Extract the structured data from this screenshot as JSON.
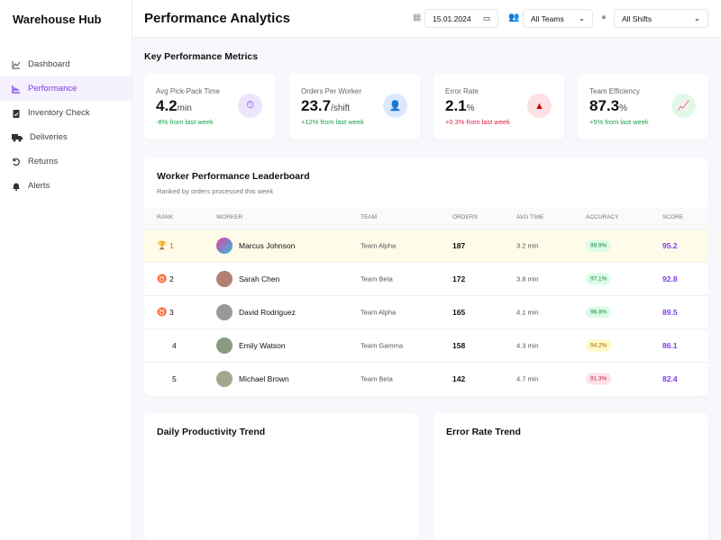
{
  "sidebar": {
    "brand": "Warehouse Hub",
    "items": [
      {
        "label": "Dashboard",
        "icon": "chart-line-icon"
      },
      {
        "label": "Performance",
        "icon": "chart-bar-icon",
        "active": true
      },
      {
        "label": "Inventory Check",
        "icon": "clipboard-check-icon"
      },
      {
        "label": "Deliveries",
        "icon": "truck-icon"
      },
      {
        "label": "Returns",
        "icon": "undo-icon"
      },
      {
        "label": "Alerts",
        "icon": "bell-icon"
      }
    ]
  },
  "header": {
    "title": "Performance Analytics",
    "date": "15.01.2024",
    "team": "All Teams",
    "shift": "All Shifts"
  },
  "kpi": {
    "title": "Key Performance Metrics",
    "cards": [
      {
        "label": "Avg Pick-Pack Time",
        "value": "4.2",
        "unit": "min",
        "change": "-8% from last week"
      },
      {
        "label": "Orders Per Worker",
        "value": "23.7",
        "unit": "/shift",
        "change": "+12% from last week"
      },
      {
        "label": "Error Rate",
        "value": "2.1",
        "unit": "%",
        "change": "+0.3% from last week"
      },
      {
        "label": "Team Efficiency",
        "value": "87.3",
        "unit": "%",
        "change": "+5% from last week"
      }
    ]
  },
  "leaderboard": {
    "title": "Worker Performance Leaderboard",
    "subtitle": "Ranked by orders processed this week",
    "columns": [
      "RANK",
      "WORKER",
      "TEAM",
      "ORDERS",
      "AVG TIME",
      "ACCURACY",
      "SCORE"
    ],
    "rows": [
      {
        "rank": "1",
        "name": "Marcus Johnson",
        "team": "Team Alpha",
        "orders": "187",
        "avg": "3.2 min",
        "acc": "98.9%",
        "score": "95.2"
      },
      {
        "rank": "2",
        "name": "Sarah Chen",
        "team": "Team Beta",
        "orders": "172",
        "avg": "3.8 min",
        "acc": "97.1%",
        "score": "92.8"
      },
      {
        "rank": "3",
        "name": "David Rodriguez",
        "team": "Team Alpha",
        "orders": "165",
        "avg": "4.1 min",
        "acc": "96.8%",
        "score": "89.5"
      },
      {
        "rank": "4",
        "name": "Emily Watson",
        "team": "Team Gamma",
        "orders": "158",
        "avg": "4.3 min",
        "acc": "94.2%",
        "score": "86.1"
      },
      {
        "rank": "5",
        "name": "Michael Brown",
        "team": "Team Beta",
        "orders": "142",
        "avg": "4.7 min",
        "acc": "91.3%",
        "score": "82.4"
      }
    ]
  },
  "trends": {
    "productivity": "Daily Productivity Trend",
    "errors": "Error Rate Trend"
  },
  "colors": {
    "accent": "#7c3aed",
    "positive": "#16a34a",
    "negative": "#e11d48"
  }
}
